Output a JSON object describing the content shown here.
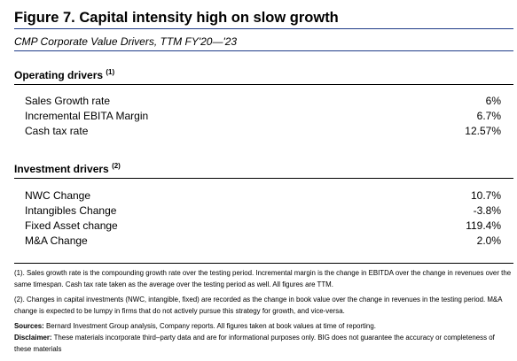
{
  "header": {
    "title": "Figure 7. Capital intensity high on slow growth",
    "subtitle": "CMP Corporate Value Drivers, TTM FY'20—'23"
  },
  "operating": {
    "heading": "Operating drivers",
    "footnote_ref": "(1)",
    "rows": [
      {
        "label": "Sales Growth rate",
        "value": "6%"
      },
      {
        "label": "Incremental EBITA Margin",
        "value": "6.7%"
      },
      {
        "label": "Cash tax rate",
        "value": "12.57%"
      }
    ]
  },
  "investment": {
    "heading": "Investment drivers",
    "footnote_ref": "(2)",
    "rows": [
      {
        "label": "NWC Change",
        "value": "10.7%"
      },
      {
        "label": "Intangibles Change",
        "value": "-3.8%"
      },
      {
        "label": "Fixed Asset change",
        "value": "119.4%"
      },
      {
        "label": "M&A Change",
        "value": "2.0%"
      }
    ]
  },
  "notes": {
    "note1": "(1). Sales growth rate is the compounding growth rate over the testing period. Incremental margin is the change in EBITDA over the change in revenues over the same timespan. Cash tax rate taken as the average over the testing period as well. All figures are TTM.",
    "note2": "(2). Changes in capital investments (NWC, intangible, fixed) are recorded as the change in book value over the change in revenues in the testing period. M&A change is expected to be lumpy in firms that do not actively pursue this strategy for growth, and vice-versa.",
    "sources_label": "Sources:",
    "sources_text": " Bernard Investment Group analysis, Company reports. All figures taken at book values at time of reporting.",
    "disclaimer_label": "Disclaimer:",
    "disclaimer_text": " These materials incorporate third–party data and are for informational purposes only. BIG does not guarantee the accuracy or completeness of these materials"
  }
}
